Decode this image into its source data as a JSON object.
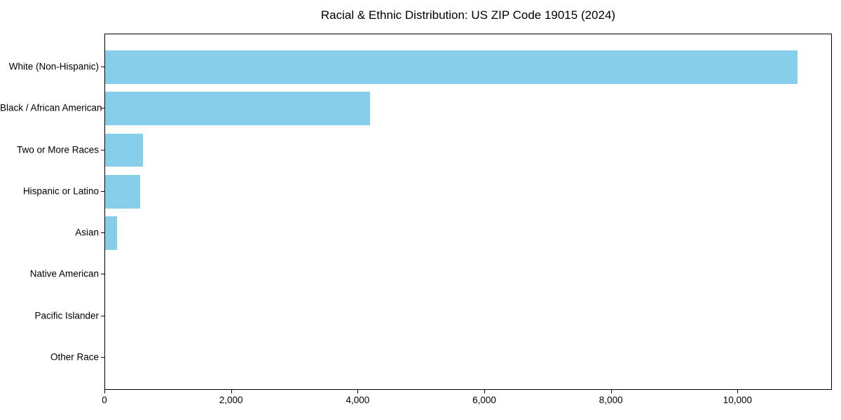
{
  "chart_data": {
    "type": "bar",
    "orientation": "horizontal",
    "title": "Racial & Ethnic Distribution: US ZIP Code 19015 (2024)",
    "categories": [
      "White (Non-Hispanic)",
      "Black / African American",
      "Two or More Races",
      "Hispanic or Latino",
      "Asian",
      "Native American",
      "Pacific Islander",
      "Other Race"
    ],
    "values": [
      10940,
      4185,
      600,
      555,
      190,
      0,
      0,
      0
    ],
    "xlabel": "",
    "ylabel": "",
    "xlim": [
      0,
      11490
    ],
    "xticks": {
      "values": [
        0,
        2000,
        4000,
        6000,
        8000,
        10000
      ],
      "labels": [
        "0",
        "2,000",
        "4,000",
        "6,000",
        "8,000",
        "10,000"
      ]
    },
    "bar_color": "#87CEEB",
    "spine_color": "#000000",
    "text_color": "#000000",
    "background_color": "#ffffff",
    "grid": false,
    "legend": null,
    "bar_height_fraction": 0.8
  }
}
